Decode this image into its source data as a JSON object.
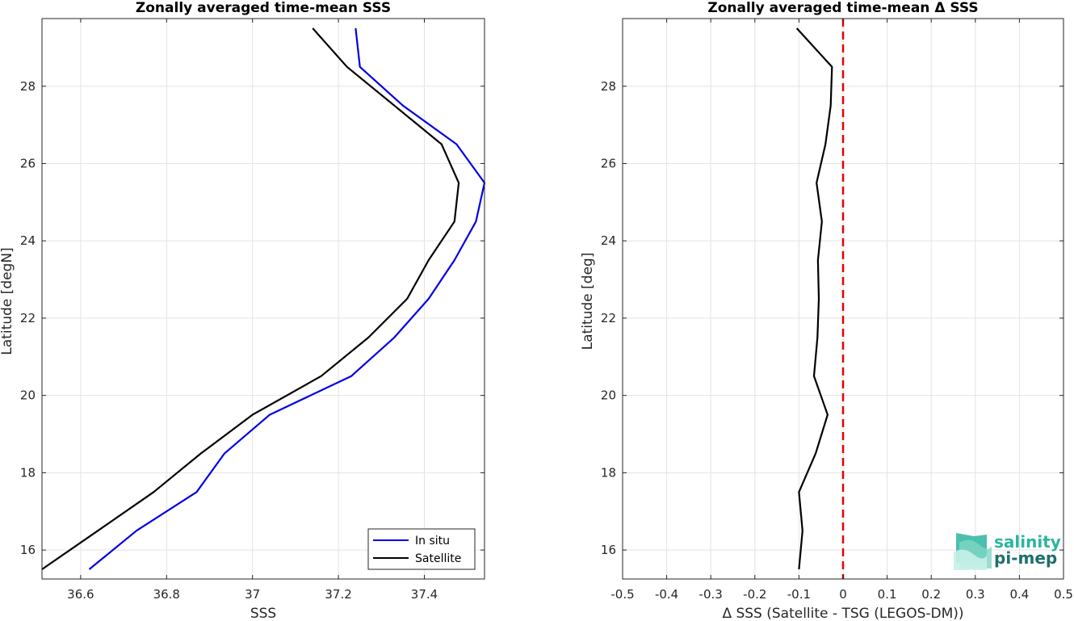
{
  "chart_data": [
    {
      "type": "line",
      "title": "Zonally averaged time-mean SSS",
      "xlabel": "SSS",
      "ylabel": "Latitude [degN]",
      "xlim": [
        36.51,
        37.54
      ],
      "ylim": [
        15.25,
        29.75
      ],
      "xticks": [
        36.6,
        36.8,
        37.0,
        37.2,
        37.4
      ],
      "xtick_labels": [
        "36.6",
        "36.8",
        "37",
        "37.2",
        "37.4"
      ],
      "yticks": [
        16,
        18,
        20,
        22,
        24,
        26,
        28
      ],
      "ytick_labels": [
        "16",
        "18",
        "20",
        "22",
        "24",
        "26",
        "28"
      ],
      "grid": true,
      "legend_position": "bottom-right",
      "series": [
        {
          "name": "In situ",
          "color": "#0000e6",
          "points": [
            [
              36.62,
              15.5
            ],
            [
              36.73,
              16.5
            ],
            [
              36.87,
              17.5
            ],
            [
              36.935,
              18.5
            ],
            [
              37.04,
              19.5
            ],
            [
              37.23,
              20.5
            ],
            [
              37.33,
              21.5
            ],
            [
              37.41,
              22.5
            ],
            [
              37.47,
              23.5
            ],
            [
              37.52,
              24.5
            ],
            [
              37.54,
              25.5
            ],
            [
              37.475,
              26.5
            ],
            [
              37.35,
              27.5
            ],
            [
              37.25,
              28.5
            ],
            [
              37.24,
              29.5
            ]
          ]
        },
        {
          "name": "Satellite",
          "color": "#000000",
          "points": [
            [
              36.51,
              15.5
            ],
            [
              36.64,
              16.5
            ],
            [
              36.77,
              17.5
            ],
            [
              36.88,
              18.5
            ],
            [
              37.0,
              19.5
            ],
            [
              37.16,
              20.5
            ],
            [
              37.27,
              21.5
            ],
            [
              37.36,
              22.5
            ],
            [
              37.41,
              23.5
            ],
            [
              37.47,
              24.5
            ],
            [
              37.48,
              25.5
            ],
            [
              37.44,
              26.5
            ],
            [
              37.33,
              27.5
            ],
            [
              37.22,
              28.5
            ],
            [
              37.14,
              29.5
            ]
          ]
        }
      ]
    },
    {
      "type": "line",
      "title": "Zonally averaged time-mean Δ SSS",
      "xlabel": "Δ SSS (Satellite - TSG (LEGOS-DM))",
      "ylabel": "Latitude [deg]",
      "xlim": [
        -0.5,
        0.5
      ],
      "ylim": [
        15.25,
        29.75
      ],
      "xticks": [
        -0.5,
        -0.4,
        -0.3,
        -0.2,
        -0.1,
        0,
        0.1,
        0.2,
        0.3,
        0.4,
        0.5
      ],
      "xtick_labels": [
        "-0.5",
        "-0.4",
        "-0.3",
        "-0.2",
        "-0.1",
        "0",
        "0.1",
        "0.2",
        "0.3",
        "0.4",
        "0.5"
      ],
      "yticks": [
        16,
        18,
        20,
        22,
        24,
        26,
        28
      ],
      "ytick_labels": [
        "16",
        "18",
        "20",
        "22",
        "24",
        "26",
        "28"
      ],
      "grid": true,
      "series": [
        {
          "color": "#000000",
          "points": [
            [
              -0.1,
              15.5
            ],
            [
              -0.092,
              16.5
            ],
            [
              -0.1,
              17.5
            ],
            [
              -0.062,
              18.5
            ],
            [
              -0.035,
              19.5
            ],
            [
              -0.066,
              20.5
            ],
            [
              -0.058,
              21.5
            ],
            [
              -0.055,
              22.5
            ],
            [
              -0.057,
              23.5
            ],
            [
              -0.048,
              24.5
            ],
            [
              -0.06,
              25.5
            ],
            [
              -0.04,
              26.5
            ],
            [
              -0.028,
              27.5
            ],
            [
              -0.025,
              28.5
            ],
            [
              -0.105,
              29.5
            ]
          ]
        }
      ],
      "reference_line": {
        "x": 0,
        "color": "#e60000",
        "style": "dashed"
      }
    }
  ],
  "logo": {
    "line1": "salinity",
    "line2": "pi-mep",
    "color1": "#2bb5a0",
    "color2": "#1f6f6a"
  }
}
